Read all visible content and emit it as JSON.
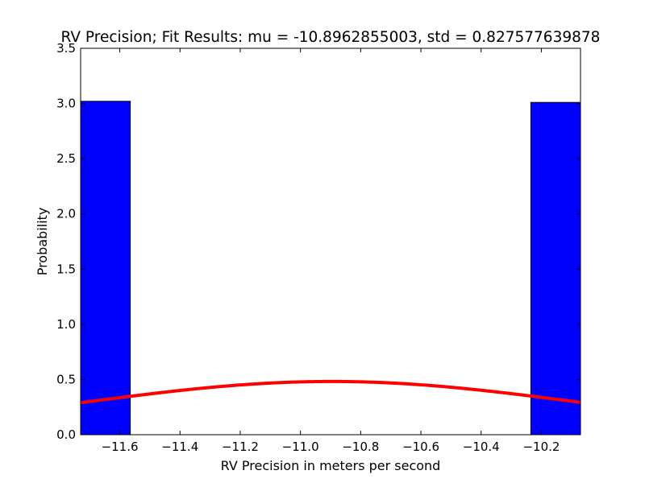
{
  "chart_data": {
    "type": "bar",
    "title": "RV Precision; Fit Results: mu = -10.8962855003, std = 0.827577639878",
    "xlabel": "RV Precision in meters per second",
    "ylabel": "Probability",
    "xlim": [
      -11.73,
      -10.07
    ],
    "ylim": [
      0,
      3.5
    ],
    "x_ticks": [
      -11.6,
      -11.4,
      -11.2,
      -11.0,
      -10.8,
      -10.6,
      -10.4,
      -10.2
    ],
    "x_tick_labels": [
      "−11.6",
      "−11.4",
      "−11.2",
      "−11.0",
      "−10.8",
      "−10.6",
      "−10.4",
      "−10.2"
    ],
    "y_ticks": [
      0.0,
      0.5,
      1.0,
      1.5,
      2.0,
      2.5,
      3.0,
      3.5
    ],
    "y_tick_labels": [
      "0.0",
      "0.5",
      "1.0",
      "1.5",
      "2.0",
      "2.5",
      "3.0",
      "3.5"
    ],
    "series": [
      {
        "type": "histogram",
        "bins": [
          {
            "x0": -11.73,
            "x1": -11.565,
            "value": 3.02
          },
          {
            "x0": -10.235,
            "x1": -10.07,
            "value": 3.01
          }
        ],
        "color": "#0000ff"
      },
      {
        "type": "line",
        "curve": "normal_pdf",
        "mu": -10.8962855003,
        "std": 0.827577639878,
        "color": "#ff0000"
      }
    ],
    "grid": false
  }
}
